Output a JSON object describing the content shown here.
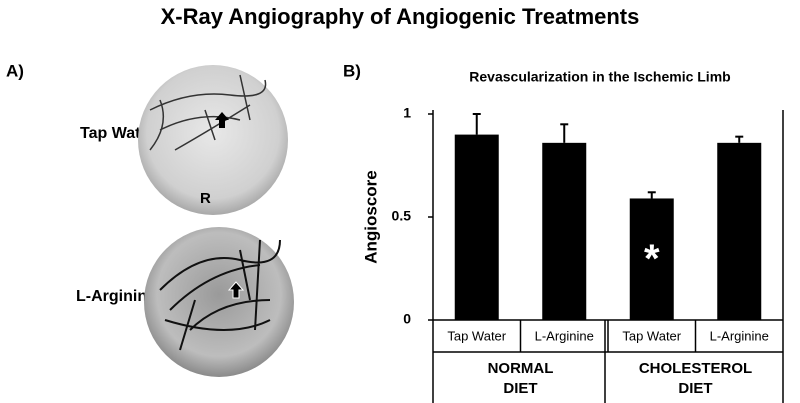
{
  "header": {
    "title": "X-Ray Angiography of Angiogenic Treatments"
  },
  "panel_a": {
    "label": "A)",
    "rows": [
      "Tap Water",
      "L-Arginine"
    ],
    "image_marker": "R"
  },
  "chart_data": {
    "type": "bar",
    "panel_label": "B)",
    "title": "Revascularization in the Ischemic Limb",
    "y_label": "Angioscore",
    "categories": [
      "Tap Water",
      "L-Arginine",
      "Tap Water",
      "L-Arginine"
    ],
    "groups": [
      {
        "lines": [
          "NORMAL",
          "DIET"
        ],
        "span": [
          0,
          1
        ]
      },
      {
        "lines": [
          "CHOLESTEROL",
          "DIET"
        ],
        "span": [
          2,
          3
        ]
      }
    ],
    "values": [
      0.9,
      0.86,
      0.59,
      0.86
    ],
    "errors": [
      0.1,
      0.09,
      0.03,
      0.03
    ],
    "color": "#000000",
    "annotations": [
      {
        "text": "*",
        "index": 2
      }
    ],
    "ylim": [
      0,
      1
    ],
    "yticks": [
      0,
      0.5,
      1
    ],
    "grid": false
  }
}
